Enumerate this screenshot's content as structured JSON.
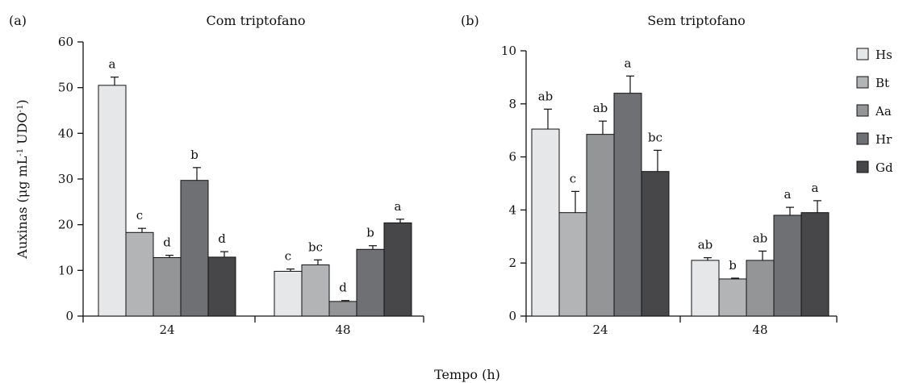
{
  "xlabel": "Tempo (h)",
  "ylabel": {
    "main": "Auxinas (μg mL",
    "sup": "-1",
    "tail": " UDO",
    "sup2": "-1",
    "end": ")"
  },
  "colors": {
    "Hs": "#e6e7e8",
    "Bt": "#b2b4b6",
    "Aa": "#939597",
    "Hr": "#6f7073",
    "Gd": "#47474a"
  },
  "chart_data": [
    {
      "type": "bar",
      "panel": "(a)",
      "title": "Com triptofano",
      "categories": [
        "24",
        "48"
      ],
      "ylim": [
        0,
        60
      ],
      "yticks": [
        0,
        10,
        20,
        30,
        40,
        50,
        60
      ],
      "series": [
        {
          "name": "Hs",
          "values": [
            50.5,
            9.8
          ],
          "errors": [
            1.8,
            0.5
          ],
          "letters": [
            "a",
            "c"
          ]
        },
        {
          "name": "Bt",
          "values": [
            18.3,
            11.2
          ],
          "errors": [
            0.9,
            1.1
          ],
          "letters": [
            "c",
            "bc"
          ]
        },
        {
          "name": "Aa",
          "values": [
            12.8,
            3.2
          ],
          "errors": [
            0.5,
            0.2
          ],
          "letters": [
            "d",
            "d"
          ]
        },
        {
          "name": "Hr",
          "values": [
            29.7,
            14.6
          ],
          "errors": [
            2.8,
            0.8
          ],
          "letters": [
            "b",
            "b"
          ]
        },
        {
          "name": "Gd",
          "values": [
            12.9,
            20.4
          ],
          "errors": [
            1.2,
            0.8
          ],
          "letters": [
            "d",
            "a"
          ]
        }
      ]
    },
    {
      "type": "bar",
      "panel": "(b)",
      "title": "Sem triptofano",
      "categories": [
        "24",
        "48"
      ],
      "ylim": [
        0,
        10
      ],
      "yticks": [
        0,
        2,
        4,
        6,
        8,
        10
      ],
      "series": [
        {
          "name": "Hs",
          "values": [
            7.05,
            2.1
          ],
          "errors": [
            0.75,
            0.1
          ],
          "letters": [
            "ab",
            "ab"
          ]
        },
        {
          "name": "Bt",
          "values": [
            3.9,
            1.4
          ],
          "errors": [
            0.8,
            0.03
          ],
          "letters": [
            "c",
            "b"
          ]
        },
        {
          "name": "Aa",
          "values": [
            6.85,
            2.1
          ],
          "errors": [
            0.5,
            0.35
          ],
          "letters": [
            "ab",
            "ab"
          ]
        },
        {
          "name": "Hr",
          "values": [
            8.4,
            3.8
          ],
          "errors": [
            0.65,
            0.3
          ],
          "letters": [
            "a",
            "a"
          ]
        },
        {
          "name": "Gd",
          "values": [
            5.45,
            3.9
          ],
          "errors": [
            0.8,
            0.45
          ],
          "letters": [
            "bc",
            "a"
          ]
        }
      ]
    }
  ]
}
